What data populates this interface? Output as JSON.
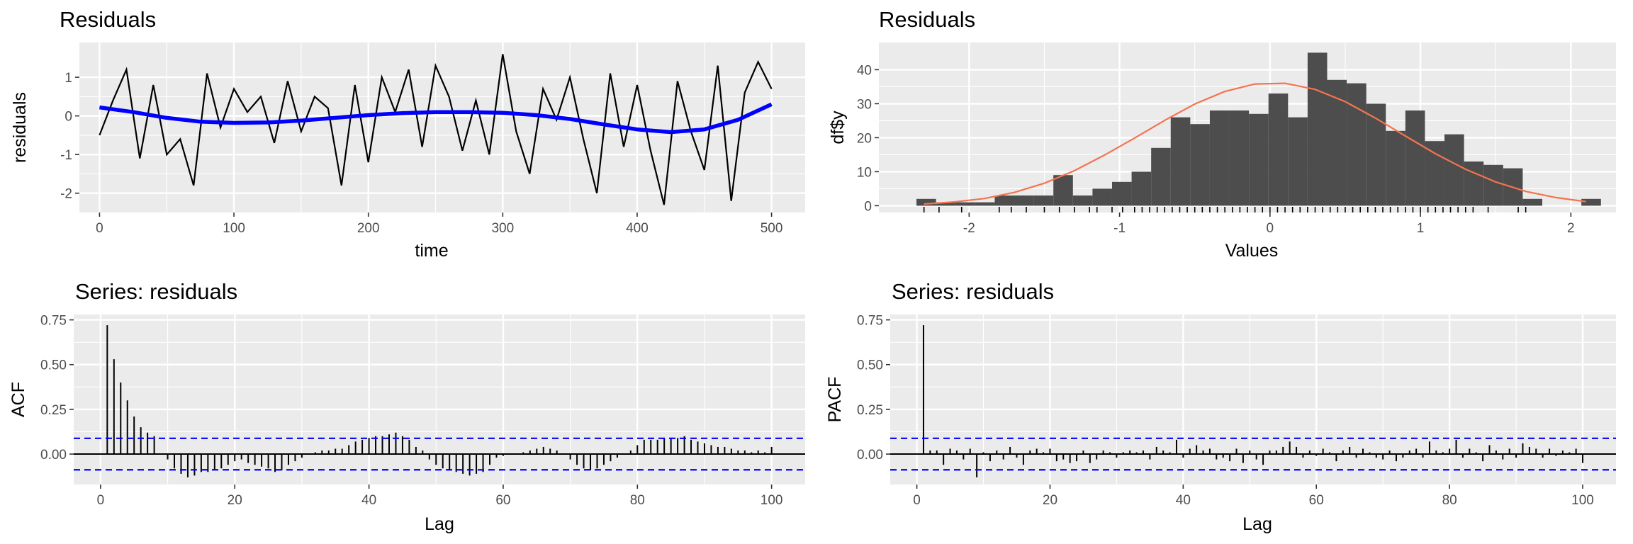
{
  "colors": {
    "panel": "#ebebeb",
    "grid": "#ffffff",
    "series_line": "#000000",
    "smooth_line": "#0000ff",
    "histogram_bar": "#4d4d4d",
    "density_curve": "#f4734f",
    "ci_lines": "#0000ff",
    "text": "#000000",
    "tick_text": "#4d4d4d"
  },
  "chart_data": [
    {
      "id": "residuals_time",
      "type": "line",
      "title": "Residuals",
      "xlabel": "time",
      "ylabel": "residuals",
      "xlim": [
        -15,
        525
      ],
      "ylim": [
        -2.5,
        1.9
      ],
      "xticks": [
        0,
        100,
        200,
        300,
        400,
        500
      ],
      "yticks": [
        -2,
        -1,
        0,
        1
      ],
      "grid": true,
      "series": [
        {
          "role": "residuals",
          "sample_every": 10,
          "x": [
            0,
            10,
            20,
            30,
            40,
            50,
            60,
            70,
            80,
            90,
            100,
            110,
            120,
            130,
            140,
            150,
            160,
            170,
            180,
            190,
            200,
            210,
            220,
            230,
            240,
            250,
            260,
            270,
            280,
            290,
            300,
            310,
            320,
            330,
            340,
            350,
            360,
            370,
            380,
            390,
            400,
            410,
            420,
            430,
            440,
            450,
            460,
            470,
            480,
            490,
            500
          ],
          "y": [
            -0.5,
            0.4,
            1.2,
            -1.1,
            0.8,
            -1.0,
            -0.6,
            -1.8,
            1.1,
            -0.3,
            0.7,
            0.1,
            0.5,
            -0.7,
            0.9,
            -0.4,
            0.5,
            0.2,
            -1.8,
            0.8,
            -1.2,
            1.0,
            0.1,
            1.2,
            -0.8,
            1.3,
            0.5,
            -0.9,
            0.4,
            -1.0,
            1.6,
            -0.4,
            -1.5,
            0.7,
            -0.1,
            1.0,
            -0.6,
            -2.0,
            1.1,
            -0.8,
            0.8,
            -0.9,
            -2.3,
            0.9,
            -0.4,
            -1.4,
            1.3,
            -2.2,
            0.6,
            1.4,
            0.7
          ]
        },
        {
          "role": "smooth",
          "x": [
            0,
            25,
            50,
            75,
            100,
            125,
            150,
            175,
            200,
            225,
            250,
            275,
            300,
            325,
            350,
            375,
            400,
            425,
            450,
            475,
            500
          ],
          "y": [
            0.22,
            0.1,
            -0.05,
            -0.15,
            -0.18,
            -0.17,
            -0.12,
            -0.05,
            0.02,
            0.07,
            0.1,
            0.1,
            0.08,
            0.02,
            -0.08,
            -0.22,
            -0.35,
            -0.42,
            -0.35,
            -0.1,
            0.3
          ]
        }
      ]
    },
    {
      "id": "residuals_hist",
      "type": "bar",
      "title": "Residuals",
      "xlabel": "Values",
      "ylabel": "df$y",
      "xlim": [
        -2.6,
        2.3
      ],
      "ylim": [
        -2,
        48
      ],
      "xticks": [
        -2,
        -1,
        0,
        1,
        2
      ],
      "yticks": [
        0,
        10,
        20,
        30,
        40
      ],
      "grid": true,
      "bin_width": 0.13,
      "bin_start": -2.35,
      "counts": [
        2,
        1,
        1,
        1,
        3,
        3,
        3,
        9,
        3,
        5,
        7,
        10,
        17,
        26,
        24,
        28,
        28,
        27,
        33,
        26,
        45,
        37,
        36,
        30,
        22,
        28,
        19,
        21,
        13,
        12,
        11,
        2,
        0,
        0,
        2
      ],
      "density_curve": {
        "x": [
          -2.3,
          -2.1,
          -1.9,
          -1.7,
          -1.5,
          -1.3,
          -1.1,
          -0.9,
          -0.7,
          -0.5,
          -0.3,
          -0.1,
          0.1,
          0.3,
          0.5,
          0.7,
          0.9,
          1.1,
          1.3,
          1.5,
          1.7,
          1.9,
          2.1
        ],
        "y": [
          0.5,
          1.1,
          2.1,
          3.9,
          6.6,
          10.3,
          14.9,
          19.9,
          25.1,
          29.9,
          33.6,
          35.8,
          36.0,
          34.2,
          30.6,
          25.8,
          20.5,
          15.3,
          10.7,
          7.0,
          4.2,
          2.4,
          1.2
        ]
      },
      "rug_x": [
        -2.3,
        -2.2,
        -2.05,
        -1.8,
        -1.72,
        -1.62,
        -1.5,
        -1.4,
        -1.3,
        -1.2,
        -1.15,
        -1.05,
        -0.98,
        -0.9,
        -0.85,
        -0.8,
        -0.75,
        -0.7,
        -0.65,
        -0.6,
        -0.55,
        -0.5,
        -0.45,
        -0.4,
        -0.35,
        -0.3,
        -0.25,
        -0.2,
        -0.15,
        -0.1,
        -0.05,
        0.0,
        0.05,
        0.1,
        0.15,
        0.2,
        0.25,
        0.3,
        0.35,
        0.4,
        0.45,
        0.5,
        0.55,
        0.6,
        0.65,
        0.7,
        0.75,
        0.8,
        0.85,
        0.9,
        0.95,
        1.0,
        1.05,
        1.1,
        1.15,
        1.2,
        1.25,
        1.3,
        1.35,
        1.45,
        1.65,
        1.7
      ]
    },
    {
      "id": "acf",
      "type": "bar",
      "title": "Series: residuals",
      "xlabel": "Lag",
      "ylabel": "ACF",
      "xlim": [
        -4,
        105
      ],
      "ylim": [
        -0.17,
        0.78
      ],
      "xticks": [
        0,
        20,
        40,
        60,
        80,
        100
      ],
      "yticks": [
        0.0,
        0.25,
        0.5,
        0.75
      ],
      "ytick_labels": [
        "0.00",
        "0.25",
        "0.50",
        "0.75"
      ],
      "grid": true,
      "ci": 0.088,
      "lags": [
        1,
        2,
        3,
        4,
        5,
        6,
        7,
        8,
        9,
        10,
        11,
        12,
        13,
        14,
        15,
        16,
        17,
        18,
        19,
        20,
        21,
        22,
        23,
        24,
        25,
        26,
        27,
        28,
        29,
        30,
        31,
        32,
        33,
        34,
        35,
        36,
        37,
        38,
        39,
        40,
        41,
        42,
        43,
        44,
        45,
        46,
        47,
        48,
        49,
        50,
        51,
        52,
        53,
        54,
        55,
        56,
        57,
        58,
        59,
        60,
        61,
        62,
        63,
        64,
        65,
        66,
        67,
        68,
        69,
        70,
        71,
        72,
        73,
        74,
        75,
        76,
        77,
        78,
        79,
        80,
        81,
        82,
        83,
        84,
        85,
        86,
        87,
        88,
        89,
        90,
        91,
        92,
        93,
        94,
        95,
        96,
        97,
        98,
        99,
        100
      ],
      "values": [
        0.72,
        0.53,
        0.4,
        0.3,
        0.21,
        0.15,
        0.12,
        0.1,
        0.0,
        -0.03,
        -0.08,
        -0.11,
        -0.13,
        -0.12,
        -0.1,
        -0.1,
        -0.09,
        -0.08,
        -0.06,
        -0.04,
        -0.03,
        -0.05,
        -0.06,
        -0.07,
        -0.08,
        -0.1,
        -0.09,
        -0.06,
        -0.04,
        -0.02,
        0.0,
        0.01,
        0.02,
        0.02,
        0.03,
        0.03,
        0.05,
        0.07,
        0.08,
        0.09,
        0.1,
        0.1,
        0.11,
        0.12,
        0.1,
        0.08,
        0.04,
        0.02,
        -0.03,
        -0.06,
        -0.08,
        -0.09,
        -0.1,
        -0.11,
        -0.12,
        -0.11,
        -0.1,
        -0.06,
        -0.02,
        -0.01,
        0.0,
        0.0,
        0.01,
        0.02,
        0.03,
        0.04,
        0.03,
        0.02,
        0.0,
        -0.03,
        -0.06,
        -0.08,
        -0.09,
        -0.08,
        -0.06,
        -0.04,
        -0.02,
        0.0,
        0.02,
        0.05,
        0.08,
        0.08,
        0.08,
        0.09,
        0.09,
        0.09,
        0.1,
        0.08,
        0.07,
        0.06,
        0.05,
        0.04,
        0.04,
        0.03,
        0.02,
        0.02,
        0.01,
        0.02,
        0.01,
        0.04
      ]
    },
    {
      "id": "pacf",
      "type": "bar",
      "title": "Series: residuals",
      "xlabel": "Lag",
      "ylabel": "PACF",
      "xlim": [
        -4,
        105
      ],
      "ylim": [
        -0.17,
        0.78
      ],
      "xticks": [
        0,
        20,
        40,
        60,
        80,
        100
      ],
      "yticks": [
        0.0,
        0.25,
        0.5,
        0.75
      ],
      "ytick_labels": [
        "0.00",
        "0.25",
        "0.50",
        "0.75"
      ],
      "grid": true,
      "ci": 0.088,
      "lags": [
        1,
        2,
        3,
        4,
        5,
        6,
        7,
        8,
        9,
        10,
        11,
        12,
        13,
        14,
        15,
        16,
        17,
        18,
        19,
        20,
        21,
        22,
        23,
        24,
        25,
        26,
        27,
        28,
        29,
        30,
        31,
        32,
        33,
        34,
        35,
        36,
        37,
        38,
        39,
        40,
        41,
        42,
        43,
        44,
        45,
        46,
        47,
        48,
        49,
        50,
        51,
        52,
        53,
        54,
        55,
        56,
        57,
        58,
        59,
        60,
        61,
        62,
        63,
        64,
        65,
        66,
        67,
        68,
        69,
        70,
        71,
        72,
        73,
        74,
        75,
        76,
        77,
        78,
        79,
        80,
        81,
        82,
        83,
        84,
        85,
        86,
        87,
        88,
        89,
        90,
        91,
        92,
        93,
        94,
        95,
        96,
        97,
        98,
        99,
        100
      ],
      "values": [
        0.72,
        0.02,
        0.02,
        -0.06,
        0.03,
        0.02,
        -0.03,
        0.03,
        -0.13,
        0.01,
        -0.04,
        0.02,
        -0.03,
        0.04,
        -0.02,
        -0.06,
        0.02,
        0.03,
        0.01,
        0.03,
        -0.04,
        -0.03,
        -0.05,
        -0.04,
        0.02,
        -0.05,
        -0.03,
        0.02,
        0.01,
        -0.02,
        0.01,
        0.02,
        0.01,
        0.02,
        -0.03,
        0.04,
        0.02,
        0.01,
        0.08,
        -0.02,
        0.03,
        0.05,
        0.02,
        0.03,
        -0.03,
        -0.02,
        -0.04,
        0.03,
        -0.05,
        0.02,
        -0.03,
        -0.06,
        0.02,
        0.02,
        0.04,
        0.07,
        0.04,
        -0.02,
        0.02,
        -0.01,
        0.03,
        0.01,
        -0.04,
        0.02,
        0.04,
        -0.02,
        0.03,
        0.01,
        -0.02,
        -0.03,
        0.02,
        -0.04,
        -0.02,
        0.02,
        0.03,
        -0.02,
        0.07,
        0.02,
        0.01,
        0.03,
        0.08,
        -0.02,
        0.03,
        0.01,
        -0.04,
        0.05,
        0.02,
        -0.03,
        0.03,
        -0.02,
        0.06,
        0.04,
        0.03,
        -0.02,
        0.03,
        -0.01,
        0.02,
        0.01,
        0.03,
        -0.05
      ]
    }
  ]
}
